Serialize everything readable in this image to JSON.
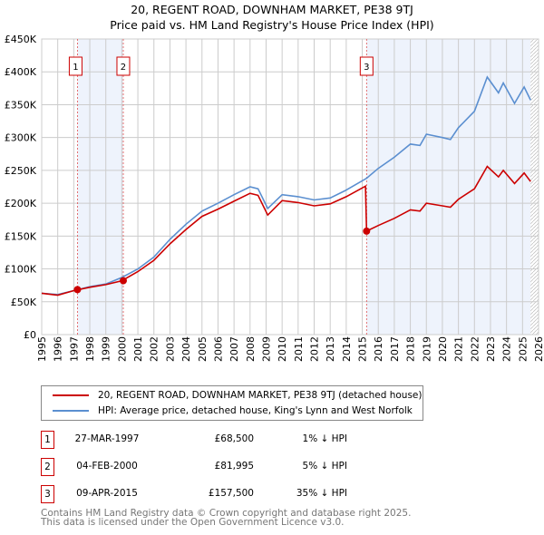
{
  "title_line1": "20, REGENT ROAD, DOWNHAM MARKET, PE38 9TJ",
  "title_line2": "Price paid vs. HM Land Registry's House Price Index (HPI)",
  "chart_data": {
    "type": "line",
    "xlim": [
      1995,
      2026
    ],
    "ylim": [
      0,
      450000
    ],
    "yticks": [
      0,
      50000,
      100000,
      150000,
      200000,
      250000,
      300000,
      350000,
      400000,
      450000
    ],
    "ytick_labels": [
      "£0",
      "£50K",
      "£100K",
      "£150K",
      "£200K",
      "£250K",
      "£300K",
      "£350K",
      "£400K",
      "£450K"
    ],
    "xticks": [
      1995,
      1996,
      1997,
      1998,
      1999,
      2000,
      2001,
      2002,
      2003,
      2004,
      2005,
      2006,
      2007,
      2008,
      2009,
      2010,
      2011,
      2012,
      2013,
      2014,
      2015,
      2016,
      2017,
      2018,
      2019,
      2020,
      2021,
      2022,
      2023,
      2024,
      2025,
      2026
    ],
    "grid": true,
    "x": [
      1995,
      1996,
      1997,
      1998,
      1999,
      2000,
      2001,
      2002,
      2003,
      2004,
      2005,
      2006,
      2007,
      2008,
      2008.5,
      2009.1,
      2010,
      2011,
      2012,
      2013,
      2014,
      2015.2,
      2015.27,
      2016,
      2017,
      2018,
      2018.6,
      2019,
      2020,
      2020.5,
      2021,
      2022,
      2022.8,
      2023.5,
      2023.8,
      2024.5,
      2025.1,
      2025.5
    ],
    "series": [
      {
        "name": "20, REGENT ROAD, DOWNHAM MARKET, PE38 9TJ (detached house)",
        "color": "#cc0000",
        "values": [
          63000,
          60000,
          67000,
          72000,
          76000,
          82000,
          96000,
          113000,
          138000,
          160000,
          180000,
          191000,
          203000,
          215000,
          212000,
          182000,
          204000,
          201000,
          196000,
          199000,
          210000,
          226000,
          157500,
          166000,
          177000,
          190000,
          188000,
          200000,
          196000,
          194000,
          206000,
          222000,
          256000,
          240000,
          250000,
          230000,
          246000,
          233000
        ]
      },
      {
        "name": "HPI: Average price, detached house, King's Lynn and West Norfolk",
        "color": "#5b8fd0",
        "values": [
          63000,
          61000,
          67000,
          73000,
          77000,
          87000,
          100000,
          118000,
          145000,
          168000,
          188000,
          200000,
          213000,
          225000,
          222000,
          192000,
          213000,
          210000,
          205000,
          208000,
          220000,
          237000,
          238000,
          253000,
          270000,
          290000,
          288000,
          305000,
          300000,
          297000,
          315000,
          340000,
          392000,
          368000,
          383000,
          352000,
          377000,
          357000
        ]
      }
    ],
    "sales": [
      {
        "id": "1",
        "x": 1997.23,
        "price": 68500
      },
      {
        "id": "2",
        "x": 2000.09,
        "price": 81995
      },
      {
        "id": "3",
        "x": 2015.27,
        "price": 157500
      }
    ],
    "shaded": [
      [
        1997.23,
        2000.09
      ],
      [
        2015.27,
        2025.5
      ]
    ],
    "hatched_from": 2025.5,
    "colors": {
      "red": "#cc0000",
      "blue": "#5b8fd0",
      "shade": "#eef3fc"
    }
  },
  "legend": [
    "20, REGENT ROAD, DOWNHAM MARKET, PE38 9TJ (detached house)",
    "HPI: Average price, detached house, King's Lynn and West Norfolk"
  ],
  "transactions": [
    {
      "id": "1",
      "date": "27-MAR-1997",
      "price": "£68,500",
      "delta": "1% ↓ HPI"
    },
    {
      "id": "2",
      "date": "04-FEB-2000",
      "price": "£81,995",
      "delta": "5% ↓ HPI"
    },
    {
      "id": "3",
      "date": "09-APR-2015",
      "price": "£157,500",
      "delta": "35% ↓ HPI"
    }
  ],
  "footer": [
    "Contains HM Land Registry data © Crown copyright and database right 2025.",
    "This data is licensed under the Open Government Licence v3.0."
  ]
}
